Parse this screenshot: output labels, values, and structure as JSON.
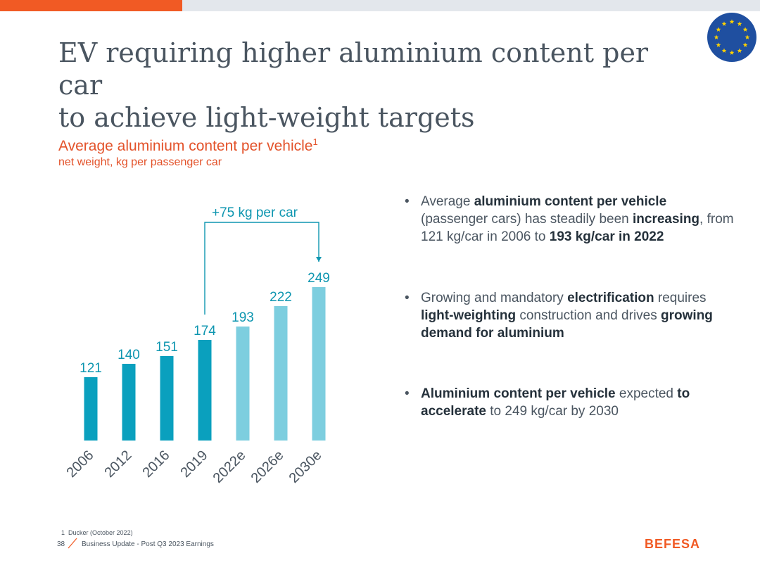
{
  "header": {
    "title_line1": "EV requiring higher aluminium content per car",
    "title_line2": "to achieve light-weight targets"
  },
  "colors": {
    "accent": "#f15a24",
    "bar_actual": "#0aa0be",
    "bar_estimate": "#7dcedf",
    "bar_label": "#0e96b0",
    "eu_blue": "#1f4fa0",
    "eu_star": "#ffd200"
  },
  "chart_data": {
    "type": "bar",
    "title": "Average aluminium content per vehicle",
    "title_footnote_marker": "1",
    "subtitle": "net weight, kg per passenger car",
    "categories": [
      "2006",
      "2012",
      "2016",
      "2019",
      "2022e",
      "2026e",
      "2030e"
    ],
    "values": [
      121,
      140,
      151,
      174,
      193,
      222,
      249
    ],
    "estimate": [
      false,
      false,
      false,
      false,
      true,
      true,
      true
    ],
    "ylim": [
      0,
      260
    ],
    "xlabel": "",
    "ylabel": "",
    "grid": false,
    "annotation": {
      "text": "+75 kg per car",
      "from": "2019",
      "to": "2030e"
    }
  },
  "bullets": [
    {
      "parts": [
        {
          "text": "Average ",
          "bold": false
        },
        {
          "text": "aluminium content per vehicle",
          "bold": true
        },
        {
          "text": " (passenger cars) has steadily been ",
          "bold": false
        },
        {
          "text": "increasing",
          "bold": true
        },
        {
          "text": ", from 121 kg/car in 2006 to ",
          "bold": false
        },
        {
          "text": "193 kg/car in 2022",
          "bold": true
        }
      ]
    },
    {
      "parts": [
        {
          "text": "Growing and mandatory ",
          "bold": false
        },
        {
          "text": "electrification",
          "bold": true
        },
        {
          "text": " requires ",
          "bold": false
        },
        {
          "text": "light-weighting",
          "bold": true
        },
        {
          "text": " construction and drives ",
          "bold": false
        },
        {
          "text": "growing demand for aluminium",
          "bold": true
        }
      ]
    },
    {
      "parts": [
        {
          "text": "Aluminium content per vehicle",
          "bold": true
        },
        {
          "text": " expected ",
          "bold": false
        },
        {
          "text": "to accelerate",
          "bold": true
        },
        {
          "text": " to 249 kg/car by 2030",
          "bold": false
        }
      ]
    }
  ],
  "bullet_symbol": "•",
  "footer": {
    "footnote_number": "1",
    "footnote_text": "Ducker (October 2022)",
    "page_number": "38",
    "text": "Business Update - Post Q3 2023 Earnings",
    "logo": "BEFESA"
  },
  "icons": {
    "eu_flag": "eu-flag-icon",
    "slash": "slash-icon"
  }
}
